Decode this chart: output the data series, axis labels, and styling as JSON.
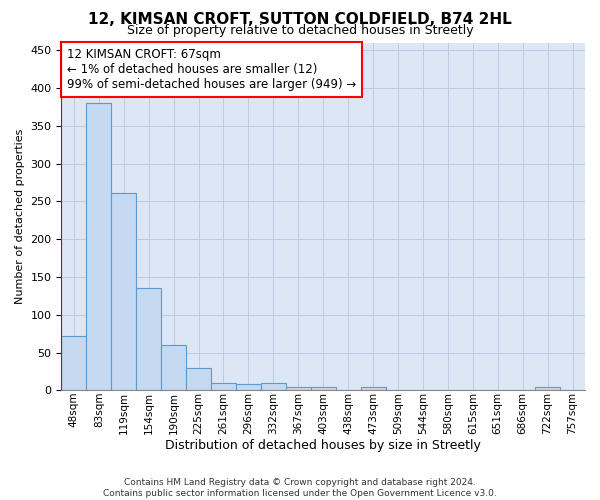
{
  "title": "12, KIMSAN CROFT, SUTTON COLDFIELD, B74 2HL",
  "subtitle": "Size of property relative to detached houses in Streetly",
  "xlabel": "Distribution of detached houses by size in Streetly",
  "ylabel": "Number of detached properties",
  "footer_line1": "Contains HM Land Registry data © Crown copyright and database right 2024.",
  "footer_line2": "Contains public sector information licensed under the Open Government Licence v3.0.",
  "annotation_title": "12 KIMSAN CROFT: 67sqm",
  "annotation_line1": "← 1% of detached houses are smaller (12)",
  "annotation_line2": "99% of semi-detached houses are larger (949) →",
  "bar_edge_color": "#5b9bd5",
  "bar_face_color": "#c5d9f1",
  "marker_color": "#cc0000",
  "categories": [
    "48sqm",
    "83sqm",
    "119sqm",
    "154sqm",
    "190sqm",
    "225sqm",
    "261sqm",
    "296sqm",
    "332sqm",
    "367sqm",
    "403sqm",
    "438sqm",
    "473sqm",
    "509sqm",
    "544sqm",
    "580sqm",
    "615sqm",
    "651sqm",
    "686sqm",
    "722sqm",
    "757sqm"
  ],
  "values": [
    72,
    380,
    261,
    136,
    60,
    30,
    10,
    9,
    10,
    5,
    5,
    0,
    4,
    0,
    0,
    0,
    0,
    0,
    0,
    4,
    0
  ],
  "ylim": [
    0,
    460
  ],
  "yticks": [
    0,
    50,
    100,
    150,
    200,
    250,
    300,
    350,
    400,
    450
  ],
  "background_color": "#dce6f5",
  "grid_color": "#b8cce4",
  "title_fontsize": 11,
  "subtitle_fontsize": 9,
  "ylabel_fontsize": 8,
  "xlabel_fontsize": 9,
  "tick_fontsize": 8,
  "xtick_fontsize": 7.5,
  "footer_fontsize": 6.5,
  "ann_fontsize": 8.5
}
